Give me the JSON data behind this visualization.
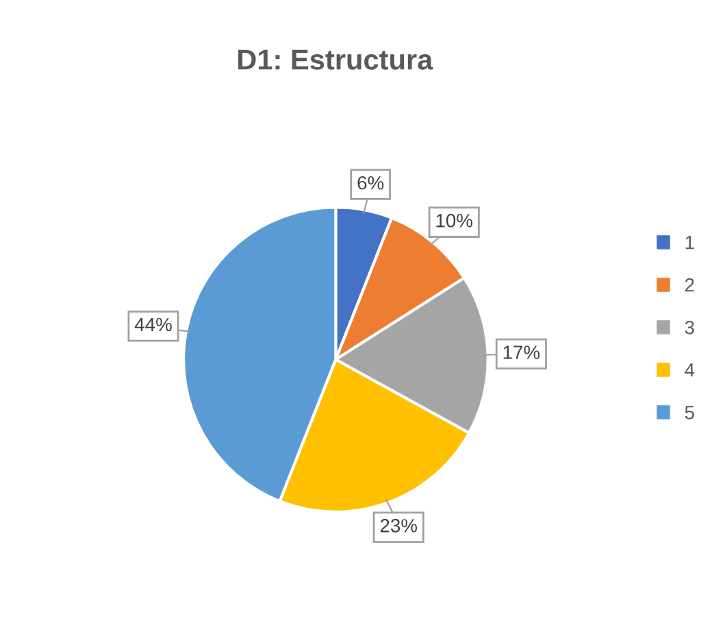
{
  "chart_data": {
    "type": "pie",
    "title": "D1: Estructura",
    "categories": [
      "1",
      "2",
      "3",
      "4",
      "5"
    ],
    "values": [
      6,
      10,
      17,
      23,
      44
    ],
    "colors": [
      "#4472c4",
      "#ed7d31",
      "#a5a5a5",
      "#ffc000",
      "#5b9bd5"
    ],
    "value_labels": [
      "6%",
      "10%",
      "17%",
      "23%",
      "44%"
    ],
    "legend": "right"
  }
}
